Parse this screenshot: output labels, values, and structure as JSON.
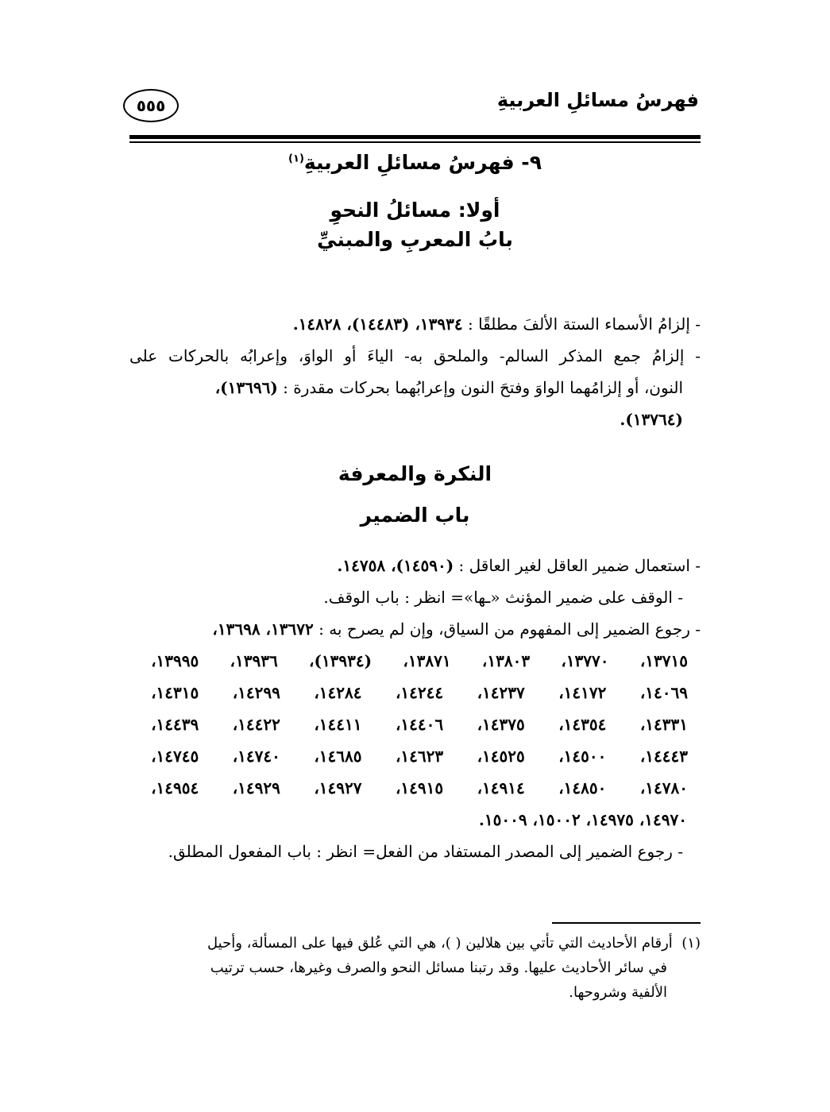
{
  "header": {
    "running_title": "فهرسُ مسائلِ العربيةِ",
    "page_number": "٥٥٥"
  },
  "section_title": "٩- فهرسُ مسائلِ العربيةِ",
  "section_footnote_mark": "(١)",
  "part_title": "أولا: مسائلُ النحوِ",
  "chapter1_title": "بابُ المعربِ والمبنيِّ",
  "chapter1_entries": [
    {
      "text": "- إلزامُ الأسماء الستة الألفَ مطلقًا : ",
      "refs": "١٣٩٣٤، (١٤٤٨٣)، ١٤٨٢٨."
    },
    {
      "text_line1": "- إلزامُ جمع المذكر السالم- والملحق به- الياءَ أو الواوَ، وإعرابُه بالحركات على",
      "text_line2": "النون، أو إلزامُهما الواوَ وفتحَ النون وإعرابُهما بحركات مقدرة : ",
      "refs_line2": "(١٣٦٩٦)،",
      "refs_line3": "(١٣٧٦٤)."
    }
  ],
  "chapter2_title": "النكرة والمعرفة",
  "chapter3_title": "باب الضمير",
  "chapter3_entries": [
    {
      "text": "- استعمال ضمير العاقل لغير العاقل : ",
      "refs": "(١٤٥٩٠)، ١٤٧٥٨."
    },
    {
      "text": "- الوقف على ضمير المؤنث «ـها»= انظر : باب الوقف."
    },
    {
      "text": "- رجوع الضمير إلى المفهوم من السياق، وإن لم يصرح به : ",
      "refs": "١٣٦٧٢، ١٣٦٩٨،",
      "ref_rows": [
        [
          "١٣٧١٥،",
          "١٣٧٧٠،",
          "١٣٨٠٣،",
          "١٣٨٧١،",
          "(١٣٩٣٤)،",
          "١٣٩٣٦،",
          "١٣٩٩٥،"
        ],
        [
          "١٤٠٦٩،",
          "١٤١٧٢،",
          "١٤٢٣٧،",
          "١٤٢٤٤،",
          "١٤٢٨٤،",
          "١٤٢٩٩،",
          "١٤٣١٥،"
        ],
        [
          "١٤٣٣١،",
          "١٤٣٥٤،",
          "١٤٣٧٥،",
          "١٤٤٠٦،",
          "١٤٤١١،",
          "١٤٤٢٢،",
          "١٤٤٣٩،"
        ],
        [
          "١٤٤٤٣،",
          "١٤٥٠٠،",
          "١٤٥٢٥،",
          "١٤٦٢٣،",
          "١٤٦٨٥،",
          "١٤٧٤٠،",
          "١٤٧٤٥،"
        ],
        [
          "١٤٧٨٠،",
          "١٤٨٥٠،",
          "١٤٩١٤،",
          "١٤٩١٥،",
          "١٤٩٢٧،",
          "١٤٩٢٩،",
          "١٤٩٥٤،"
        ]
      ],
      "refs_last": "١٤٩٧٠، ١٤٩٧٥، ١٥٠٠٢، ١٥٠٠٩."
    },
    {
      "text": "- رجوع الضمير إلى المصدر المستفاد من الفعل= انظر : باب المفعول المطلق."
    }
  ],
  "footnote": {
    "mark": "(١)",
    "line1": "أرقام الأحاديث التي تأتي بين هلالين ( )، هي التي عُلق فيها على المسألة، وأحيل",
    "line2": "في سائر الأحاديث عليها. وقد رتبنا مسائل النحو والصرف وغيرها، حسب ترتيب",
    "line3": "الألفية وشروحها."
  }
}
